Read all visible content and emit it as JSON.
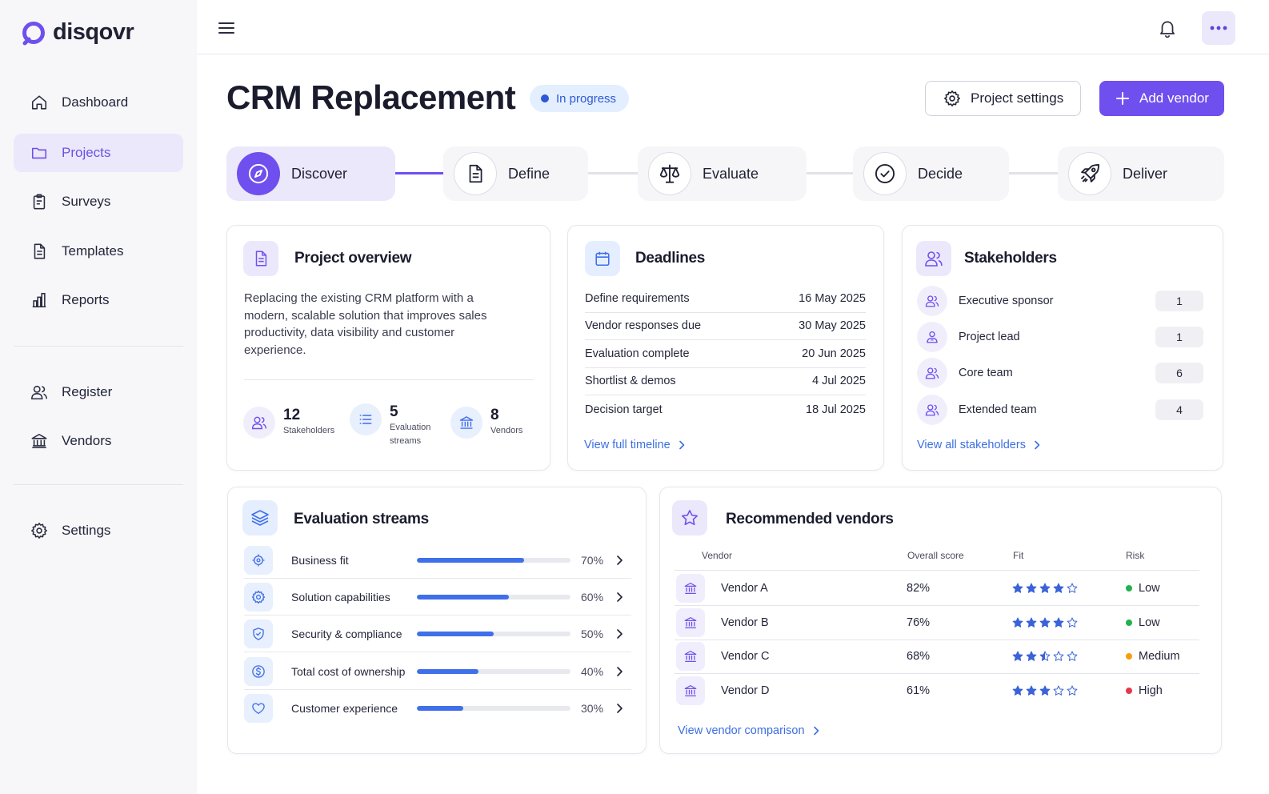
{
  "app": {
    "name": "disqovr"
  },
  "sidebar": {
    "items": [
      {
        "label": "Dashboard",
        "icon": "home-icon"
      },
      {
        "label": "Projects",
        "icon": "folder-icon",
        "active": true
      },
      {
        "label": "Surveys",
        "icon": "clipboard-icon"
      },
      {
        "label": "Templates",
        "icon": "document-icon"
      },
      {
        "label": "Reports",
        "icon": "bar-chart-icon"
      },
      {
        "label": "Register",
        "icon": "users-icon"
      },
      {
        "label": "Vendors",
        "icon": "bank-icon"
      },
      {
        "label": "Settings",
        "icon": "gear-icon"
      }
    ]
  },
  "header": {
    "title": "CRM Replacement",
    "status": "In progress",
    "settings_label": "Project settings",
    "add_label": "Add vendor"
  },
  "stepper": [
    {
      "label": "Discover",
      "icon": "compass-icon",
      "active": true
    },
    {
      "label": "Define",
      "icon": "document-icon"
    },
    {
      "label": "Evaluate",
      "icon": "scale-icon"
    },
    {
      "label": "Decide",
      "icon": "check-circle-icon"
    },
    {
      "label": "Deliver",
      "icon": "rocket-icon"
    }
  ],
  "overview": {
    "title": "Project overview",
    "description": "Replacing the existing CRM platform with a modern, scalable solution that improves sales productivity, data visibility and customer experience.",
    "stats": [
      {
        "value": "12",
        "label": "Stakeholders",
        "icon": "users-icon"
      },
      {
        "value": "5",
        "label": "Evaluation streams",
        "icon": "list-icon"
      },
      {
        "value": "8",
        "label": "Vendors",
        "icon": "bank-icon"
      }
    ]
  },
  "deadlines": {
    "title": "Deadlines",
    "rows": [
      {
        "label": "Define requirements",
        "date": "16 May 2025"
      },
      {
        "label": "Vendor responses due",
        "date": "30 May 2025"
      },
      {
        "label": "Evaluation complete",
        "date": "20 Jun 2025"
      },
      {
        "label": "Shortlist & demos",
        "date": "4 Jul 2025"
      },
      {
        "label": "Decision target",
        "date": "18 Jul 2025"
      }
    ],
    "link": "View full timeline"
  },
  "stakeholders": {
    "title": "Stakeholders",
    "rows": [
      {
        "label": "Executive sponsor",
        "count": "1"
      },
      {
        "label": "Project lead",
        "count": "1"
      },
      {
        "label": "Core team",
        "count": "6"
      },
      {
        "label": "Extended team",
        "count": "4"
      }
    ],
    "link": "View all stakeholders"
  },
  "streams": {
    "title": "Evaluation streams",
    "rows": [
      {
        "label": "Business fit",
        "percent": "70%",
        "value": 0.7,
        "icon": "target-icon"
      },
      {
        "label": "Solution capabilities",
        "percent": "60%",
        "value": 0.6,
        "icon": "gear-icon"
      },
      {
        "label": "Security & compliance",
        "percent": "50%",
        "value": 0.5,
        "icon": "shield-icon"
      },
      {
        "label": "Total cost of ownership",
        "percent": "40%",
        "value": 0.4,
        "icon": "dollar-icon"
      },
      {
        "label": "Customer experience",
        "percent": "30%",
        "value": 0.3,
        "icon": "heart-icon"
      }
    ]
  },
  "vendors": {
    "title": "Recommended vendors",
    "headers": {
      "vendor": "Vendor",
      "score": "Overall score",
      "fit": "Fit",
      "risk": "Risk"
    },
    "rows": [
      {
        "name": "Vendor A",
        "score": "82%",
        "fit": 4,
        "risk": "Low",
        "risk_color": "#22b14c"
      },
      {
        "name": "Vendor B",
        "score": "76%",
        "fit": 4,
        "risk": "Low",
        "risk_color": "#22b14c"
      },
      {
        "name": "Vendor C",
        "score": "68%",
        "fit": 2.5,
        "risk": "Medium",
        "risk_color": "#f59e0b"
      },
      {
        "name": "Vendor D",
        "score": "61%",
        "fit": 3,
        "risk": "High",
        "risk_color": "#e5384f"
      }
    ],
    "link": "View vendor comparison"
  },
  "colors": {
    "accent": "#6f4fee",
    "link": "#3d6fe0",
    "progress": "#3f6fea",
    "star": "#3a63d8"
  }
}
